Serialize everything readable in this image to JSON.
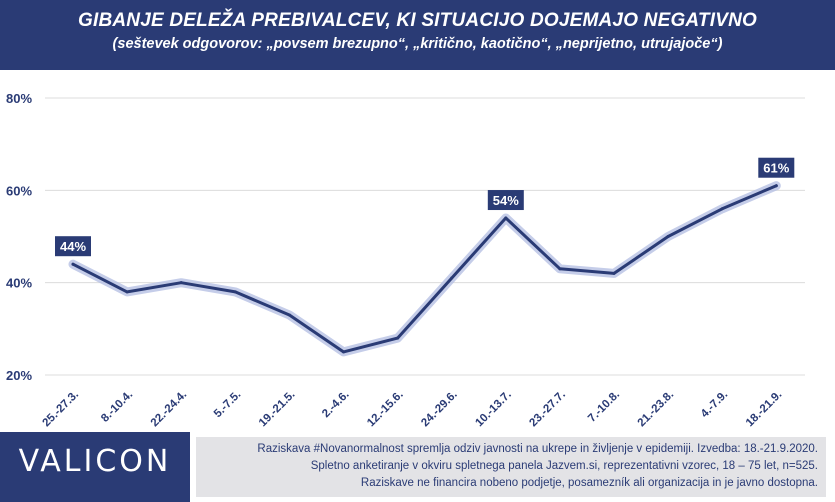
{
  "header": {
    "title": "GIBANJE DELEŽA PREBIVALCEV, KI SITUACIJO DOJEMAJO NEGATIVNO",
    "subtitle": "(seštevek odgovorov: „povsem brezupno“, „kritično, kaotično“, „neprijetno, utrujajoče“)"
  },
  "chart_data": {
    "type": "line",
    "categories": [
      "25.-27.3.",
      "8.-10.4.",
      "22.-24.4.",
      "5.-7.5.",
      "19.-21.5.",
      "2.-4.6.",
      "12.-15.6.",
      "24.-29.6.",
      "10.-13.7.",
      "23.-27.7.",
      "7.-10.8.",
      "21.-23.8.",
      "4.-7.9.",
      "18.-21.9."
    ],
    "series": [
      {
        "values": [
          44,
          38,
          40,
          38,
          33,
          25,
          28,
          41,
          54,
          43,
          42,
          50,
          56,
          61
        ]
      }
    ],
    "y_ticks": [
      "20%",
      "40%",
      "60%",
      "80%"
    ],
    "ylim": [
      20,
      80
    ],
    "grid": true,
    "annotations": [
      {
        "index": 0,
        "label": "44%"
      },
      {
        "index": 8,
        "label": "54%"
      },
      {
        "index": 13,
        "label": "61%"
      }
    ],
    "colors": {
      "line": "#2a3b75",
      "glow": "#b7c0e4",
      "grid": "#dcdcdc",
      "label_bg": "#2a3b75",
      "label_text": "#ffffff"
    }
  },
  "footer": {
    "logo": "VALICON",
    "lines": [
      "Raziskava #Novanormalnost spremlja odziv javnosti na ukrepe in življenje v epidemiji. Izvedba: 18.-21.9.2020.",
      "Spletno anketiranje v okviru spletnega panela Jazvem.si, reprezentativni vzorec, 18 – 75 let, n=525.",
      "Raziskave ne financira nobeno podjetje, posamezník ali organizacija in je javno dostopna."
    ]
  }
}
